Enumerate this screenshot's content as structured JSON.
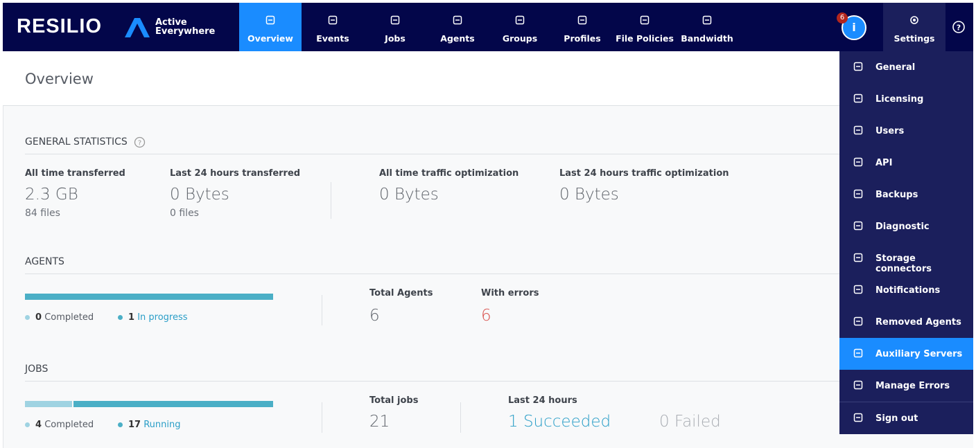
{
  "header": {
    "brand": "RESILIO",
    "product_line1": "Active",
    "product_line2": "Everywhere",
    "nav": [
      "Overview",
      "Events",
      "Jobs",
      "Agents",
      "Groups",
      "Profiles",
      "File Policies",
      "Bandwidth"
    ],
    "notification_count": 6,
    "settings": "Settings"
  },
  "page_title": "Overview",
  "general_statistics": {
    "title": "GENERAL STATISTICS",
    "stats": [
      {
        "label": "All time transferred",
        "value": "2.3 GB",
        "sub": "84 files"
      },
      {
        "label": "Last 24 hours transferred",
        "value": "0 Bytes",
        "sub": "0 files"
      },
      {
        "label": "All time traffic optimization",
        "value": "0 Bytes"
      },
      {
        "label": "Last 24 hours traffic optimization",
        "value": "0 Bytes"
      }
    ]
  },
  "agents": {
    "title": "AGENTS",
    "completed": 0,
    "completed_label": "Completed",
    "in_progress": 1,
    "in_progress_label": "In progress",
    "total_label": "Total Agents",
    "total": 6,
    "errors_label": "With errors",
    "errors": 6
  },
  "jobs": {
    "title": "JOBS",
    "completed": 4,
    "completed_label": "Completed",
    "running": 17,
    "running_label": "Running",
    "total_label": "Total jobs",
    "total": 21,
    "last24_label": "Last 24 hours",
    "succeeded": 1,
    "succeeded_label": "Succeeded",
    "failed": 0,
    "failed_label": "Failed"
  },
  "settings_menu": [
    "General",
    "Licensing",
    "Users",
    "API",
    "Backups",
    "Diagnostic",
    "Storage connectors",
    "Notifications",
    "Removed Agents",
    "Auxiliary Servers",
    "Manage Errors",
    "Sign out"
  ]
}
